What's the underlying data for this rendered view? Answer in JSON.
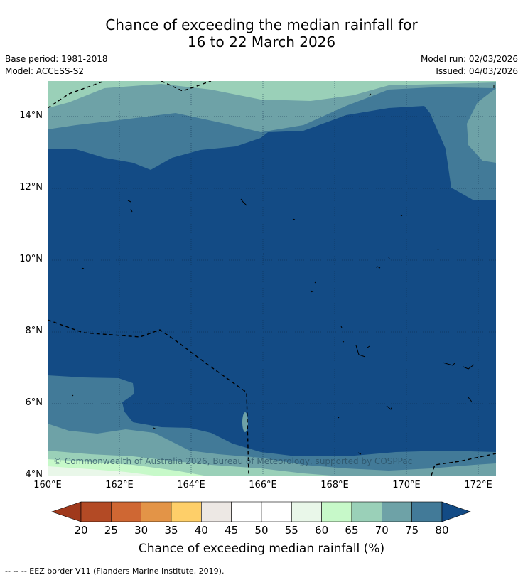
{
  "title": {
    "line1": "Chance of exceeding the median rainfall for",
    "line2": "16 to 22 March 2026"
  },
  "meta": {
    "base_period": "Base period: 1981-2018",
    "model": "Model: ACCESS-S2",
    "model_run": "Model run: 02/03/2026",
    "issued": "Issued: 04/03/2026"
  },
  "map": {
    "lat_labels": [
      "14°N",
      "12°N",
      "10°N",
      "8°N",
      "6°N",
      "4°N"
    ],
    "lon_labels": [
      "160°E",
      "162°E",
      "164°E",
      "166°E",
      "168°E",
      "170°E",
      "172°E"
    ],
    "copyright": "© Commonwealth of Australia 2026, Bureau of Meteorology, supported by COSPPac"
  },
  "colorbar": {
    "labels": [
      "20",
      "25",
      "30",
      "35",
      "40",
      "45",
      "50",
      "55",
      "60",
      "65",
      "70",
      "75",
      "80"
    ],
    "title": "Chance of exceeding median rainfall (%)",
    "colors": {
      "below20": "#a0391c",
      "c20_25": "#b34a25",
      "c25_30": "#cf6733",
      "c30_35": "#e39447",
      "c35_40": "#fecf69",
      "c40_45": "#ede8e4",
      "c45_50": "#ffffff",
      "c50_55": "#ffffff",
      "c55_60": "#e9f7e9",
      "c60_65": "#c7f9c9",
      "c65_70": "#9ad0b8",
      "c70_75": "#6ea2a7",
      "c75_80": "#427a98",
      "above80": "#134b85"
    }
  },
  "footnote": "--  --  -- EEZ border V11 (Flanders Marine Institute, 2019)."
}
